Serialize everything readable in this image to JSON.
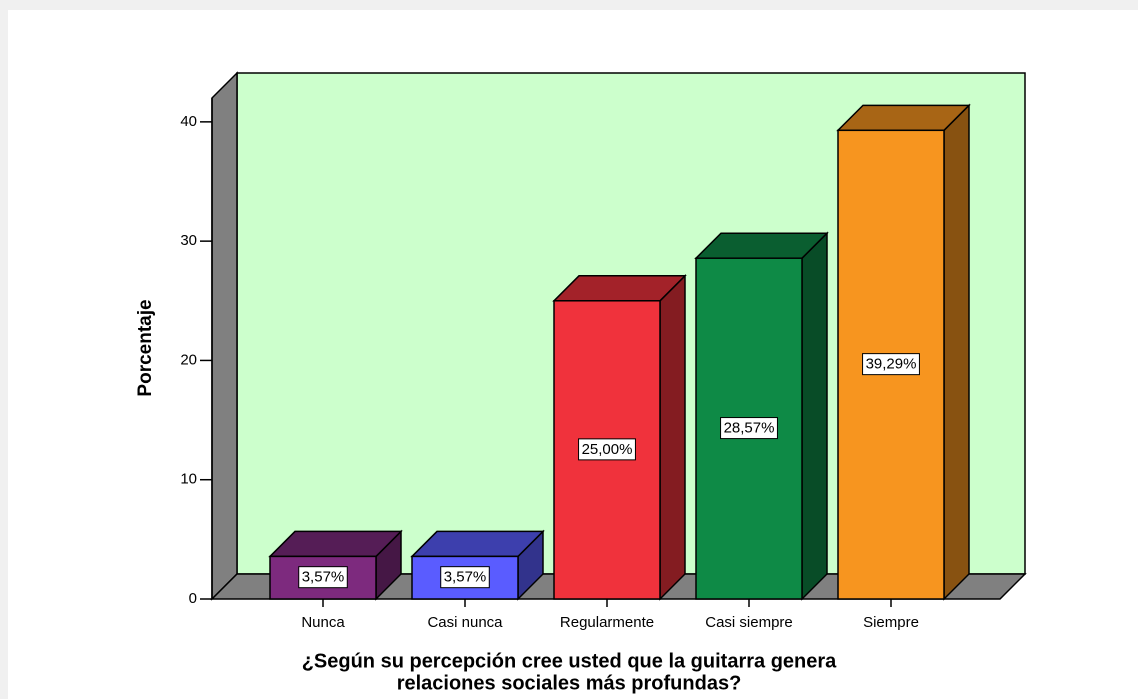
{
  "chart_data": {
    "type": "bar3d",
    "ylabel": "Porcentaje",
    "xlabel": [
      "¿Según su percepción cree usted que la guitarra genera",
      "relaciones sociales más profundas?"
    ],
    "categories": [
      "Nunca",
      "Casi nunca",
      "Regularmente",
      "Casi siempre",
      "Siempre"
    ],
    "values": [
      3.57,
      3.57,
      25.0,
      28.57,
      39.29
    ],
    "value_labels": [
      "3,57%",
      "3,57%",
      "25,00%",
      "28,57%",
      "39,29%"
    ],
    "colors": [
      "#7d2a7e",
      "#5a5cff",
      "#f0323c",
      "#0e8a46",
      "#f7951f"
    ],
    "ylim": [
      0,
      42
    ],
    "yticks": [
      0,
      10,
      20,
      30,
      40
    ],
    "wall_color": "#ccffcc",
    "grid": false
  }
}
